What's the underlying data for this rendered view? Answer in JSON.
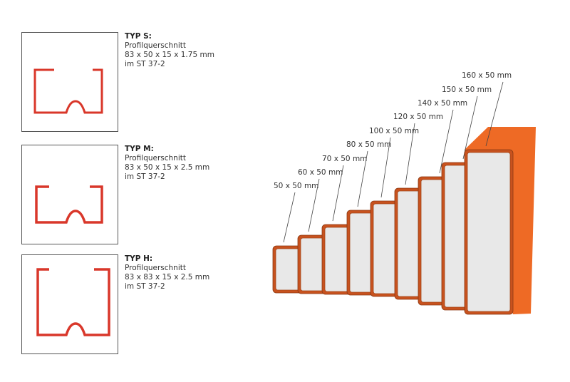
{
  "profiles": [
    {
      "title": "TYP S:",
      "line1": "Profilquerschnitt",
      "line2": "83 x 50 x 15 x 1.75 mm",
      "line3": "im ST 37-2"
    },
    {
      "title": "TYP M:",
      "line1": "Profilquerschnitt",
      "line2": "83 x 50 x 15 x 2.5 mm",
      "line3": "im ST 37-2"
    },
    {
      "title": "TYP H:",
      "line1": "Profilquerschnitt",
      "line2": "83 x 83 x 15 x 2.5 mm",
      "line3": "im ST 37-2"
    }
  ],
  "tubes": [
    "50 x 50 mm",
    "60 x 50 mm",
    "70 x 50 mm",
    "80 x 50 mm",
    "100 x 50 mm",
    "120 x 50 mm",
    "140 x 50 mm",
    "150 x 50 mm",
    "160 x 50 mm"
  ],
  "colors": {
    "profile": "#d9372a",
    "tube_border": "#c8521e",
    "tube_face": "#e8e8e8",
    "tube_side": "#ee6a25"
  }
}
